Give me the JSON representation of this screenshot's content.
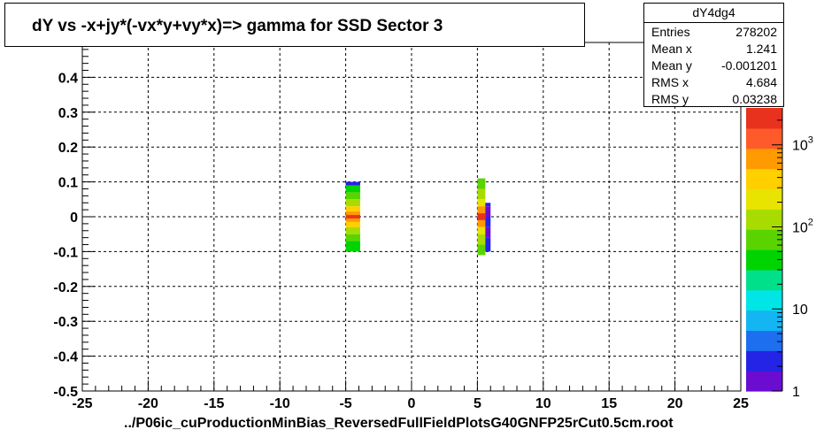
{
  "title": "dY vs -x+jy*(-vx*y+vy*x)=> gamma for SSD Sector 3",
  "stats": {
    "name": "dY4dg4",
    "rows": [
      {
        "label": "Entries",
        "value": "278202"
      },
      {
        "label": "Mean x",
        "value": "1.241"
      },
      {
        "label": "Mean y",
        "value": "-0.001201"
      },
      {
        "label": "RMS x",
        "value": "4.684"
      },
      {
        "label": "RMS y",
        "value": "0.03238"
      }
    ]
  },
  "file_label": "../P06ic_cuProductionMinBias_ReversedFullFieldPlotsG40GNFP25rCut0.5cm.root",
  "chart_data": {
    "type": "heatmap",
    "xlim": [
      -25,
      25
    ],
    "ylim": [
      -0.5,
      0.5
    ],
    "x_ticks": [
      "-25",
      "-20",
      "-15",
      "-10",
      "-5",
      "0",
      "5",
      "10",
      "15",
      "20",
      "25"
    ],
    "y_ticks": [
      "-0.5",
      "-0.4",
      "-0.3",
      "-0.2",
      "-0.1",
      "0",
      "0.1",
      "0.2",
      "0.3",
      "0.4"
    ],
    "grid": true,
    "z_scale": "log",
    "z_ticks": [
      "1",
      "10",
      "10^2",
      "10^3"
    ],
    "palette": [
      "#6a0dd1",
      "#2424e6",
      "#1e6ff0",
      "#13b5f2",
      "#00e5e5",
      "#00e08a",
      "#00d400",
      "#5ad400",
      "#a8dc00",
      "#e8e400",
      "#ffcf00",
      "#ff9a00",
      "#ff5a2a",
      "#e8321e"
    ],
    "clusters": [
      {
        "x_range": [
          -5.0,
          -3.9
        ],
        "cells": [
          {
            "y0": 0.09,
            "y1": 0.1,
            "level": 1
          },
          {
            "y0": 0.07,
            "y1": 0.09,
            "level": 6
          },
          {
            "y0": 0.05,
            "y1": 0.07,
            "level": 7
          },
          {
            "y0": 0.03,
            "y1": 0.05,
            "level": 8
          },
          {
            "y0": 0.015,
            "y1": 0.03,
            "level": 10
          },
          {
            "y0": 0.005,
            "y1": 0.015,
            "level": 11
          },
          {
            "y0": -0.005,
            "y1": 0.005,
            "level": 13
          },
          {
            "y0": -0.015,
            "y1": -0.005,
            "level": 11
          },
          {
            "y0": -0.03,
            "y1": -0.015,
            "level": 10
          },
          {
            "y0": -0.05,
            "y1": -0.03,
            "level": 8
          },
          {
            "y0": -0.07,
            "y1": -0.05,
            "level": 7
          },
          {
            "y0": -0.1,
            "y1": -0.07,
            "level": 6
          }
        ]
      },
      {
        "x_range": [
          5.0,
          5.6
        ],
        "cells": [
          {
            "y0": 0.08,
            "y1": 0.11,
            "level": 7
          },
          {
            "y0": 0.05,
            "y1": 0.08,
            "level": 8
          },
          {
            "y0": 0.03,
            "y1": 0.05,
            "level": 9
          },
          {
            "y0": 0.01,
            "y1": 0.03,
            "level": 11
          },
          {
            "y0": -0.01,
            "y1": 0.01,
            "level": 13
          },
          {
            "y0": -0.03,
            "y1": -0.01,
            "level": 11
          },
          {
            "y0": -0.05,
            "y1": -0.03,
            "level": 9
          },
          {
            "y0": -0.08,
            "y1": -0.05,
            "level": 8
          },
          {
            "y0": -0.11,
            "y1": -0.08,
            "level": 7
          }
        ]
      },
      {
        "x_range": [
          5.6,
          6.0
        ],
        "cells": [
          {
            "y0": 0.03,
            "y1": 0.04,
            "level": 1
          },
          {
            "y0": 0.0,
            "y1": 0.03,
            "level": 0
          },
          {
            "y0": -0.03,
            "y1": 0.0,
            "level": 1
          },
          {
            "y0": -0.06,
            "y1": -0.03,
            "level": 0
          },
          {
            "y0": -0.1,
            "y1": -0.06,
            "level": 1
          }
        ]
      }
    ]
  }
}
